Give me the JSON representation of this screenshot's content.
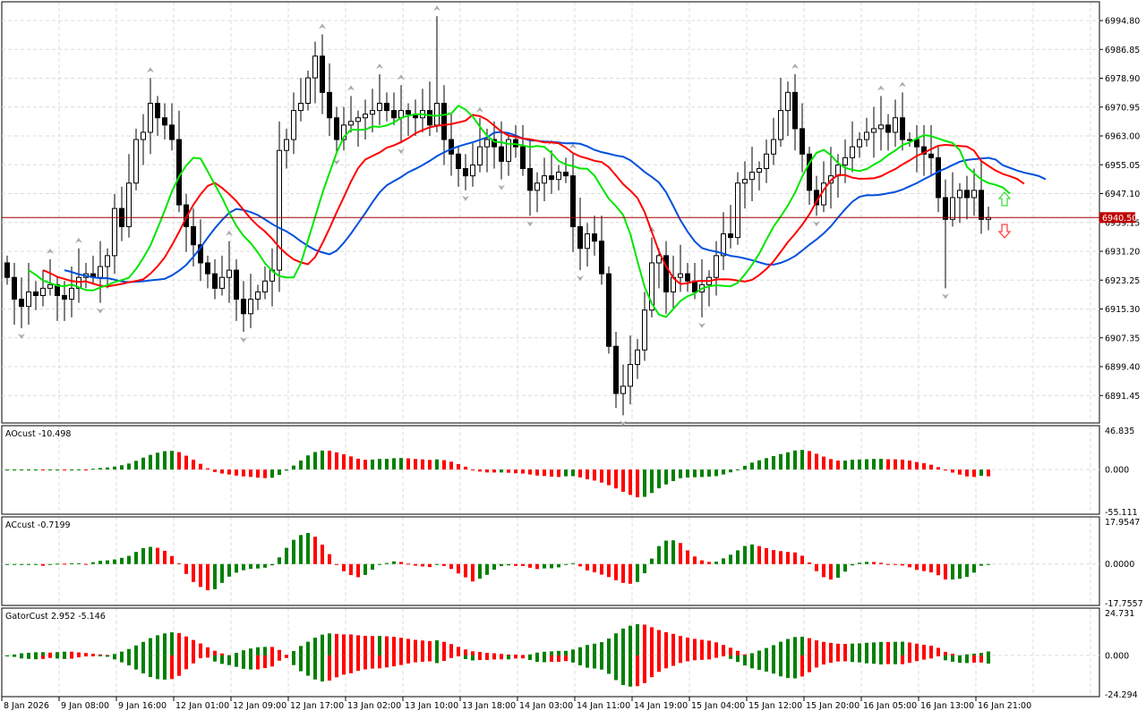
{
  "chart_data": {
    "type": "candlestick",
    "price_axis": {
      "ticks": [
        "6994.80",
        "6986.85",
        "6978.90",
        "6970.95",
        "6963.00",
        "6955.05",
        "6947.10",
        "6939.15",
        "6931.20",
        "6923.25",
        "6915.30",
        "6907.35",
        "6899.40",
        "6891.45"
      ],
      "ylim": [
        6886.5,
        6999.5
      ]
    },
    "current_price": "6940.50",
    "closes": [
      6924,
      6918,
      6916,
      6920,
      6919,
      6921,
      6922,
      6919,
      6918,
      6921,
      6924,
      6925,
      6924,
      6927,
      6930,
      6943,
      6938,
      6950,
      6962,
      6964,
      6972,
      6968,
      6966,
      6962,
      6944,
      6938,
      6933,
      6928,
      6925,
      6921,
      6924,
      6926,
      6918,
      6914,
      6918,
      6920,
      6923,
      6926,
      6959,
      6962,
      6970,
      6972,
      6979,
      6985,
      6975,
      6968,
      6962,
      6966,
      6967,
      6968,
      6969,
      6970,
      6972,
      6970,
      6968,
      6970,
      6969,
      6968,
      6970,
      6966,
      6972,
      6962,
      6958,
      6954,
      6952,
      6955,
      6960,
      6962,
      6960,
      6956,
      6962,
      6960,
      6954,
      6948,
      6950,
      6952,
      6951,
      6953,
      6952,
      6938,
      6932,
      6936,
      6934,
      6925,
      6905,
      6892,
      6894,
      6900,
      6904,
      6915,
      6928,
      6930,
      6920,
      6924,
      6925,
      6923,
      6920,
      6922,
      6924,
      6930,
      6936,
      6935,
      6950,
      6951,
      6953,
      6954,
      6958,
      6962,
      6970,
      6975,
      6965,
      6958,
      6948,
      6944,
      6950,
      6952,
      6955,
      6957,
      6960,
      6962,
      6964,
      6965,
      6966,
      6964,
      6968,
      6962,
      6962,
      6960,
      6958,
      6957,
      6946,
      6940,
      6946,
      6948,
      6946,
      6948,
      6940,
      6940.5
    ],
    "first_open": 6928,
    "time_labels": [
      "8 Jan 2026",
      "9 Jan 08:00",
      "9 Jan 16:00",
      "12 Jan 01:00",
      "12 Jan 09:00",
      "12 Jan 17:00",
      "13 Jan 02:00",
      "13 Jan 10:00",
      "13 Jan 18:00",
      "14 Jan 03:00",
      "14 Jan 11:00",
      "14 Jan 19:00",
      "15 Jan 04:00",
      "15 Jan 12:00",
      "15 Jan 20:00",
      "16 Jan 05:00",
      "16 Jan 13:00",
      "16 Jan 21:00"
    ],
    "alligator_colors": {
      "jaw": "#0050dc",
      "teeth": "#ff0000",
      "lips": "#00e600"
    },
    "indicators": [
      {
        "title": "AOcust -10.498",
        "max": "46.835",
        "zero": "0.000",
        "min": "-55.111"
      },
      {
        "title": "ACcust -0.7199",
        "max": "17.9547",
        "zero": "0.0000",
        "min": "-17.7557"
      },
      {
        "title": "GatorCust 2.952 -5.146",
        "max": "24.731",
        "zero": "0.000",
        "min": "-24.294"
      }
    ],
    "colors": {
      "up": "#008000",
      "down": "#ff0000",
      "price_label": "#c00000"
    },
    "signal_icons": [
      "arrow-up-icon",
      "arrow-down-icon"
    ]
  }
}
